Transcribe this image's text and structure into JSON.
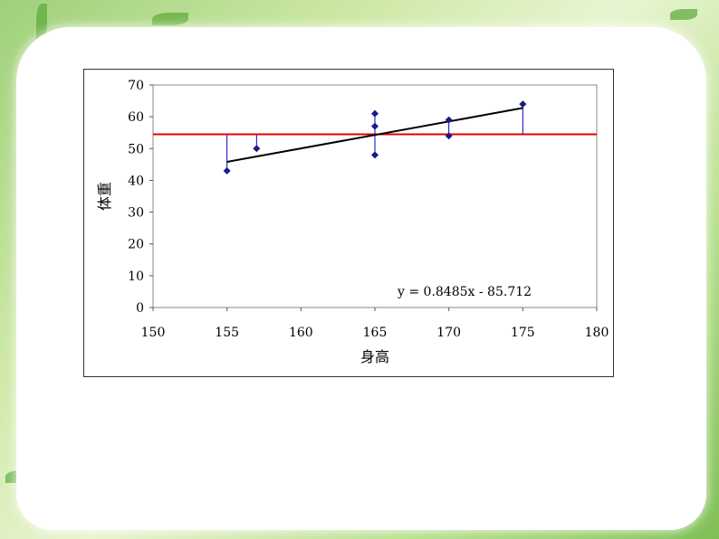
{
  "chart_data": {
    "type": "scatter",
    "title": "",
    "xlabel": "身高",
    "ylabel": "体重",
    "xlim": [
      150,
      180
    ],
    "ylim": [
      0,
      70
    ],
    "x_ticks": [
      "150",
      "155",
      "160",
      "165",
      "170",
      "175",
      "180"
    ],
    "y_ticks": [
      "0",
      "10",
      "20",
      "30",
      "40",
      "50",
      "60",
      "70"
    ],
    "grid": false,
    "points": [
      {
        "x": 155,
        "y": 43
      },
      {
        "x": 157,
        "y": 50
      },
      {
        "x": 165,
        "y": 48
      },
      {
        "x": 165,
        "y": 57
      },
      {
        "x": 165,
        "y": 61
      },
      {
        "x": 170,
        "y": 54
      },
      {
        "x": 170,
        "y": 59
      },
      {
        "x": 175,
        "y": 64
      }
    ],
    "mean_line_y": 54.5,
    "regression": {
      "slope": 0.8485,
      "intercept": -85.712,
      "x_range": [
        155,
        175
      ]
    },
    "equation_label": "y = 0.8485x - 85.712",
    "colors": {
      "points": "#1a1a8c",
      "mean_line": "#e00000",
      "regression_line": "#000000",
      "residual_lines": "#0000cc"
    }
  }
}
